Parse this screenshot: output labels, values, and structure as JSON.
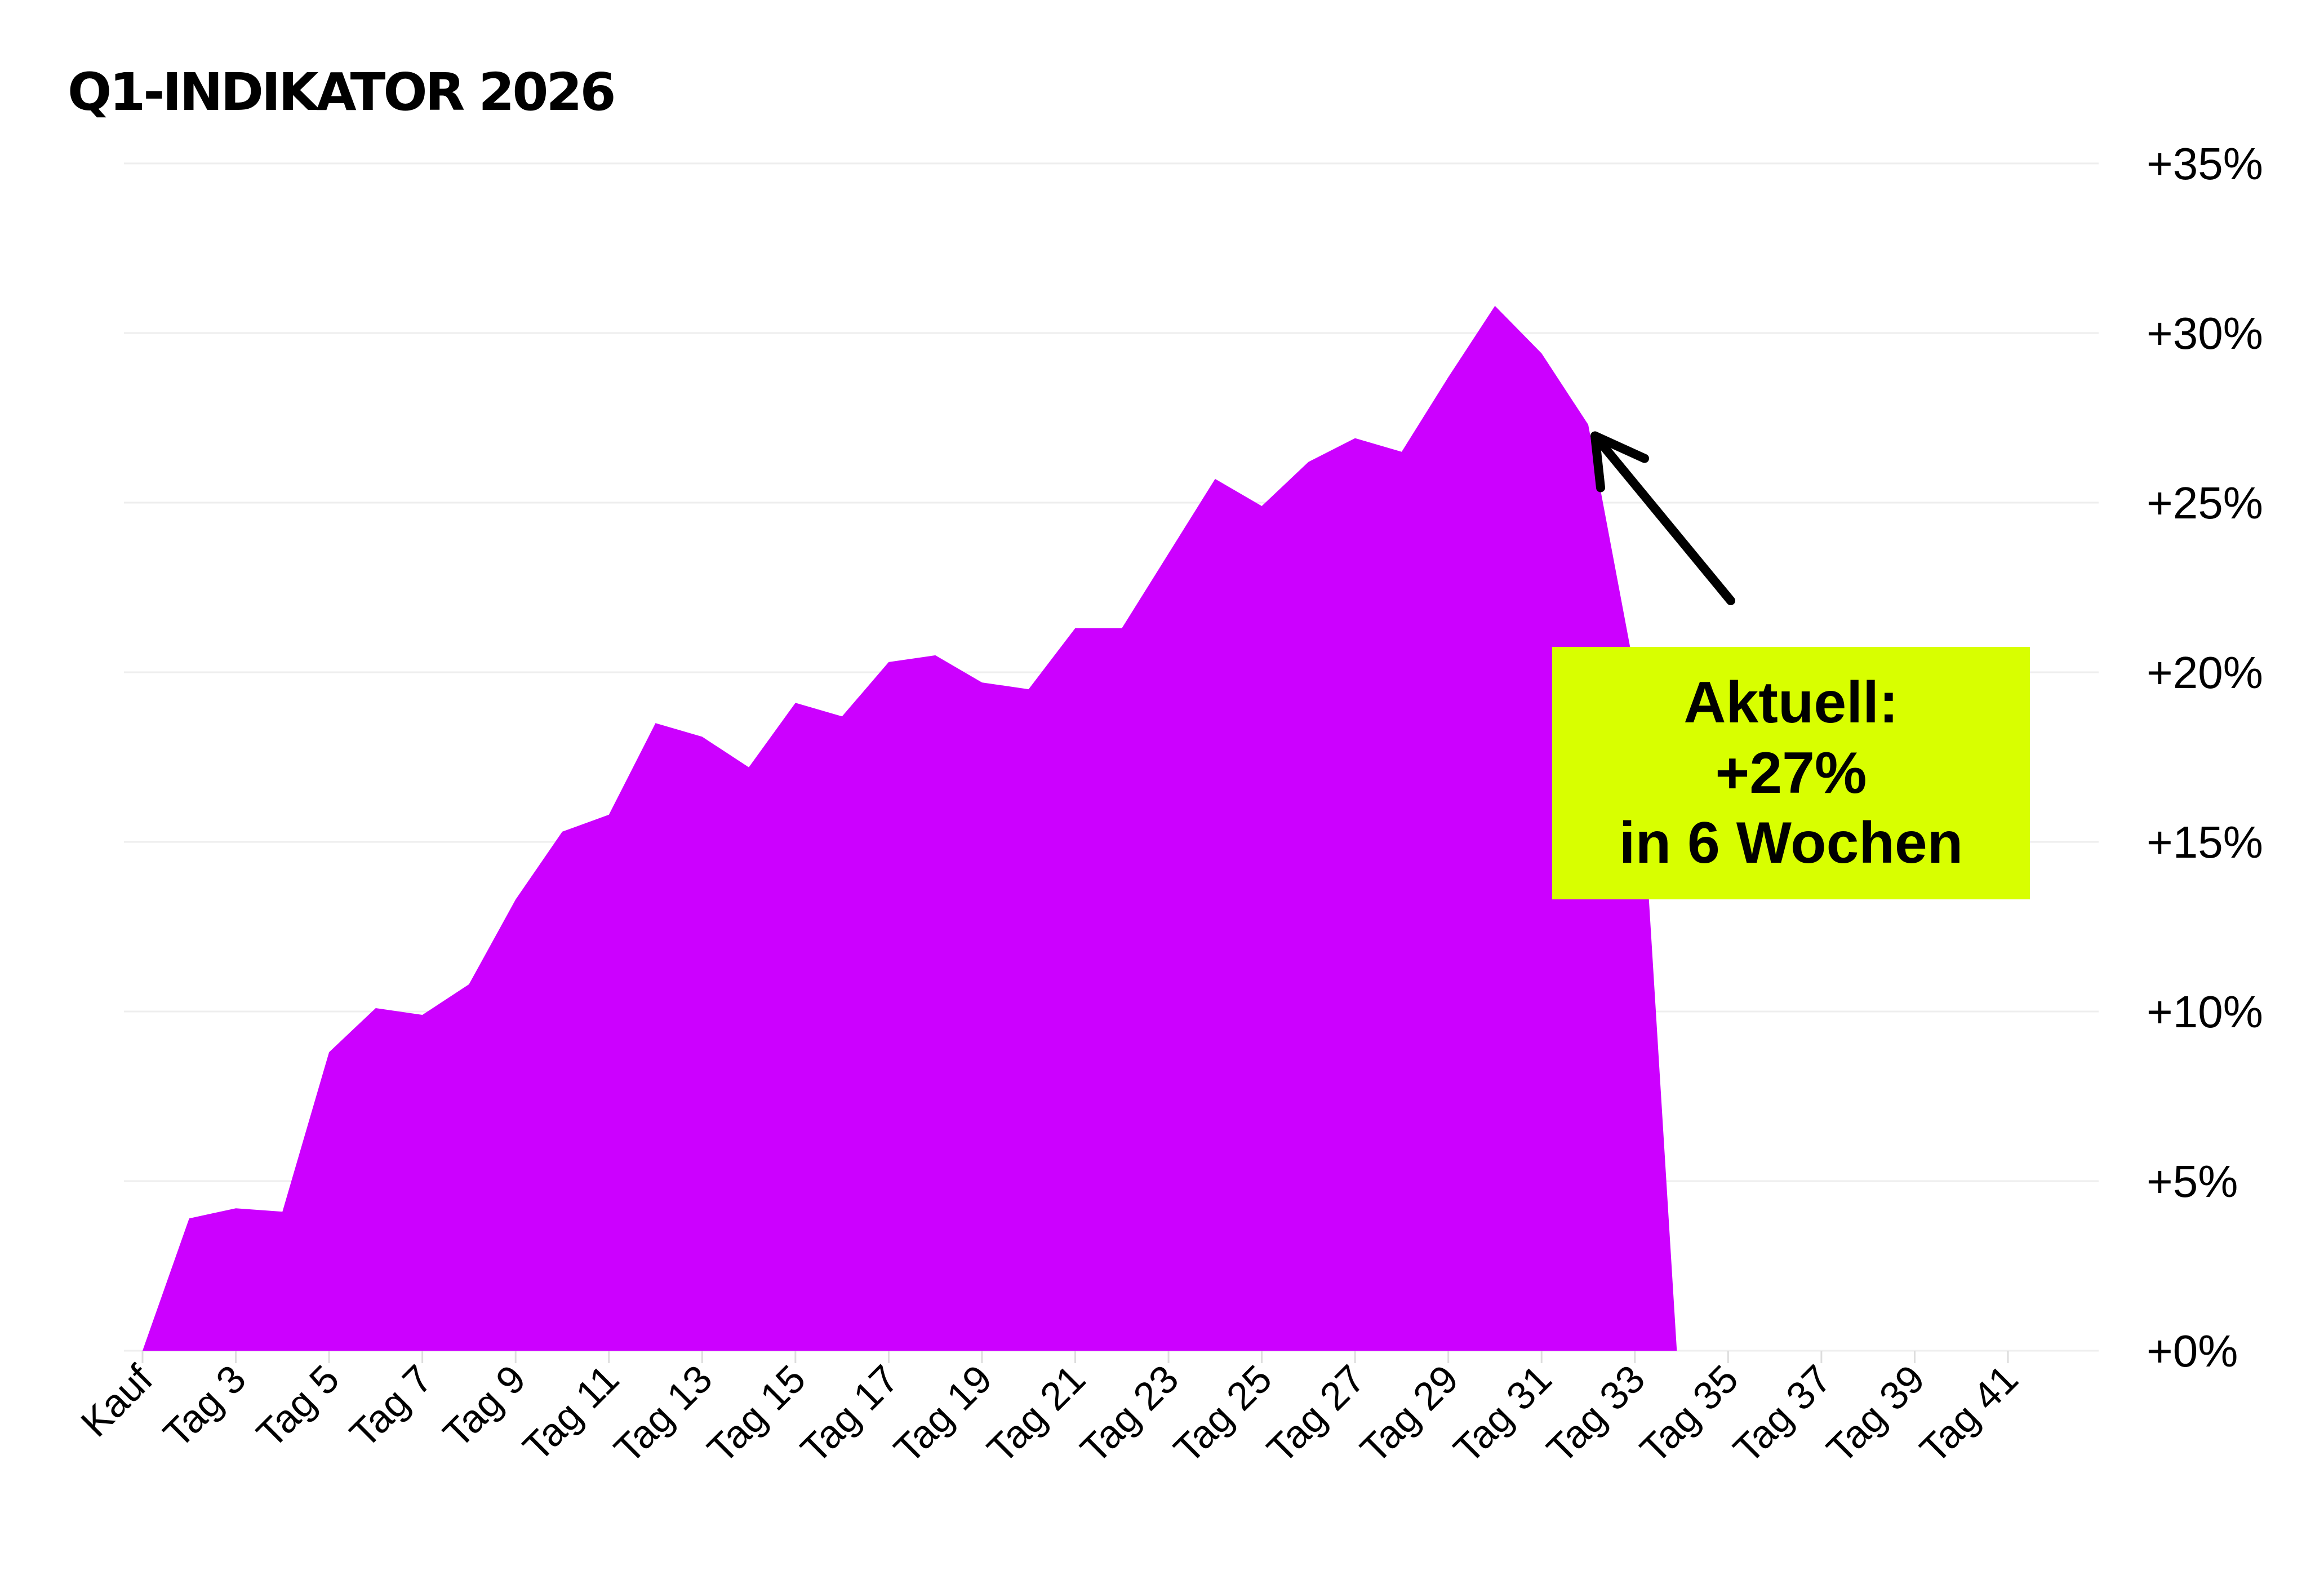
{
  "colors": {
    "area": "#cc00ff",
    "callout_bg": "#d8ff00",
    "grid": "#eeeeee",
    "text": "#000000"
  },
  "chart_data": {
    "type": "area",
    "title": "Q1-INDIKATOR 2026",
    "xlabel": "",
    "ylabel": "",
    "x_tick_labels": [
      "Kauf",
      "Tag 3",
      "Tag 5",
      "Tag 7",
      "Tag 9",
      "Tag 11",
      "Tag 13",
      "Tag 15",
      "Tag 17",
      "Tag 19",
      "Tag 21",
      "Tag 23",
      "Tag 25",
      "Tag 27",
      "Tag 29",
      "Tag 31",
      "Tag 33",
      "Tag 35",
      "Tag 37",
      "Tag 39",
      "Tag 41"
    ],
    "y_tick_labels": [
      "+0%",
      "+5%",
      "+10%",
      "+15%",
      "+20%",
      "+25%",
      "+30%",
      "+35%"
    ],
    "y_ticks": [
      0,
      5,
      10,
      15,
      20,
      25,
      30,
      35
    ],
    "ylim": [
      0,
      35
    ],
    "y_axis_position": "right",
    "grid": true,
    "legend": "none",
    "series": [
      {
        "x": [
          1,
          2,
          3,
          4,
          5,
          6,
          7,
          8,
          9,
          10,
          11,
          12,
          13,
          14,
          15,
          16,
          17,
          18,
          19,
          20,
          21,
          22,
          23,
          24,
          25,
          26,
          27,
          28,
          29,
          30,
          31,
          32,
          33,
          33.9
        ],
        "values": [
          0,
          3.9,
          4.2,
          4.1,
          8.8,
          10.1,
          9.9,
          10.8,
          13.3,
          15.3,
          15.8,
          18.5,
          18.1,
          17.2,
          19.1,
          18.7,
          20.3,
          20.5,
          19.7,
          19.5,
          21.3,
          21.3,
          23.5,
          25.7,
          24.9,
          26.2,
          26.9,
          26.5,
          28.7,
          30.8,
          29.4,
          27.3,
          20,
          0
        ]
      }
    ],
    "annotation": {
      "lines": [
        "Aktuell:",
        "+27%",
        "in 6 Wochen"
      ],
      "points_to": {
        "x": 32,
        "y": 27.3
      }
    }
  }
}
